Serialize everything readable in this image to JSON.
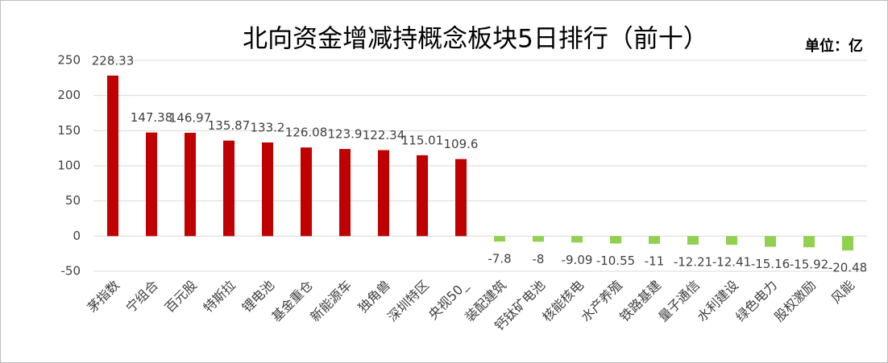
{
  "chart_data": {
    "type": "bar",
    "title": "北向资金增减持概念板块5日排行（前十）",
    "unit_label": "单位：亿",
    "categories": [
      "茅指数",
      "宁组合",
      "百元股",
      "特斯拉",
      "锂电池",
      "基金重仓",
      "新能源车",
      "独角兽",
      "深圳特区",
      "央视50_",
      "装配建筑",
      "钙钛矿电池",
      "核能核电",
      "水产养殖",
      "铁路基建",
      "量子通信",
      "水利建设",
      "绿色电力",
      "股权激励",
      "风能"
    ],
    "values": [
      228.33,
      147.38,
      146.97,
      135.87,
      133.2,
      126.08,
      123.9,
      122.34,
      115.01,
      109.6,
      -7.8,
      -8,
      -9.09,
      -10.55,
      -11,
      -12.21,
      -12.41,
      -15.16,
      -15.92,
      -20.48
    ],
    "color_positive": "#c00000",
    "color_negative": "#92d050",
    "ylim": [
      -50,
      250
    ],
    "yticks": [
      -50,
      0,
      50,
      100,
      150,
      200,
      250
    ],
    "grid": true
  }
}
